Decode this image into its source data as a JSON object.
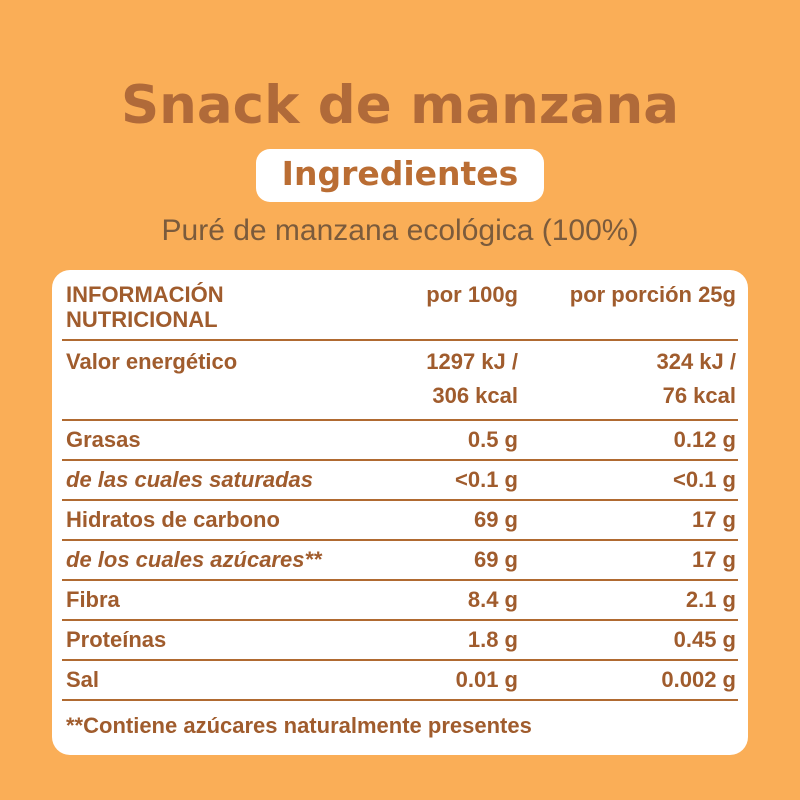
{
  "header": {
    "title": "Snack de manzana",
    "ingredients_badge": "Ingredientes",
    "ingredients_text": "Puré de manzana ecológica (100%)"
  },
  "colors": {
    "background": "#FAAE57",
    "title_brown": "#B06A39",
    "badge_text_brown": "#BA6D33",
    "subtitle_brown": "#7B5B3C",
    "table_text_brown": "#A05C2D",
    "rule_brown": "#B06A31",
    "card_white": "#FFFFFF"
  },
  "table": {
    "header": {
      "title": "INFORMACIÓN NUTRICIONAL",
      "per100": "por 100g",
      "per25": "por porción 25g"
    },
    "rows": [
      {
        "label": "Valor energético",
        "per100_line1": "1297 kJ /",
        "per100_line2": "306 kcal",
        "per25_line1": "324 kJ /",
        "per25_line2": "76 kcal"
      },
      {
        "label": "Grasas",
        "per100": "0.5 g",
        "per25": "0.12 g"
      },
      {
        "label": "de las cuales saturadas",
        "per100": "<0.1 g",
        "per25": "<0.1 g"
      },
      {
        "label": "Hidratos de carbono",
        "per100": "69 g",
        "per25": "17 g"
      },
      {
        "label": "de los cuales azúcares**",
        "per100": "69 g",
        "per25": "17 g"
      },
      {
        "label": "Fibra",
        "per100": "8.4 g",
        "per25": "2.1 g"
      },
      {
        "label": "Proteínas",
        "per100": "1.8 g",
        "per25": "0.45 g"
      },
      {
        "label": "Sal",
        "per100": "0.01 g",
        "per25": "0.002 g"
      }
    ],
    "footnote": "**Contiene azúcares naturalmente presentes"
  }
}
